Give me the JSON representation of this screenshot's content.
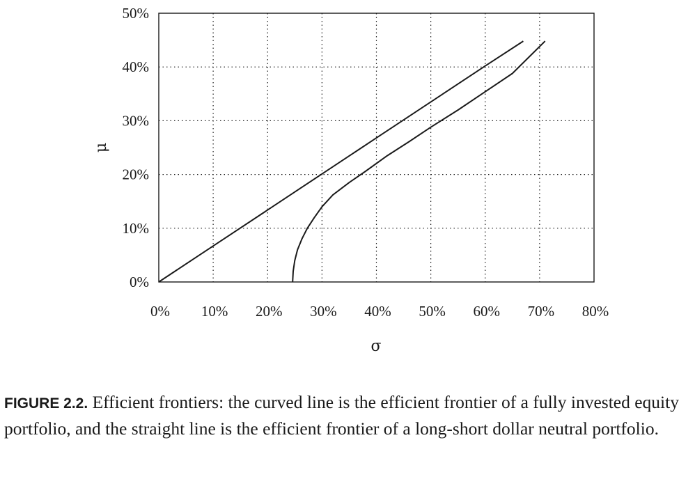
{
  "chart_data": {
    "type": "line",
    "xlabel": "σ",
    "ylabel": "μ",
    "xlim": [
      0,
      80
    ],
    "ylim": [
      0,
      50
    ],
    "x_ticks": [
      "0%",
      "10%",
      "20%",
      "30%",
      "40%",
      "50%",
      "60%",
      "70%",
      "80%"
    ],
    "y_ticks": [
      "0%",
      "10%",
      "20%",
      "30%",
      "40%",
      "50%"
    ],
    "grid": true,
    "series": [
      {
        "points": [
          [
            0,
            0
          ],
          [
            10,
            6.7
          ],
          [
            20,
            13.4
          ],
          [
            30,
            20.1
          ],
          [
            40,
            26.8
          ],
          [
            50,
            33.5
          ],
          [
            60,
            40.2
          ],
          [
            67,
            44.8
          ]
        ]
      },
      {
        "points": [
          [
            24.6,
            0
          ],
          [
            24.7,
            2
          ],
          [
            25,
            4
          ],
          [
            25.5,
            6
          ],
          [
            26.3,
            8
          ],
          [
            27.3,
            10
          ],
          [
            28.6,
            12
          ],
          [
            30,
            14
          ],
          [
            32,
            16.2
          ],
          [
            35,
            18.5
          ],
          [
            38,
            20.6
          ],
          [
            42,
            23.5
          ],
          [
            46,
            26.1
          ],
          [
            50,
            28.8
          ],
          [
            55,
            32
          ],
          [
            60,
            35.4
          ],
          [
            65,
            38.8
          ],
          [
            71,
            44.8
          ]
        ]
      }
    ]
  },
  "caption": {
    "label": "FIGURE 2.2.",
    "text": " Efficient frontiers: the curved line is the efficient frontier of a fully invested equity portfolio, and the straight line is the efficient frontier of a long-short dollar neutral portfolio."
  }
}
